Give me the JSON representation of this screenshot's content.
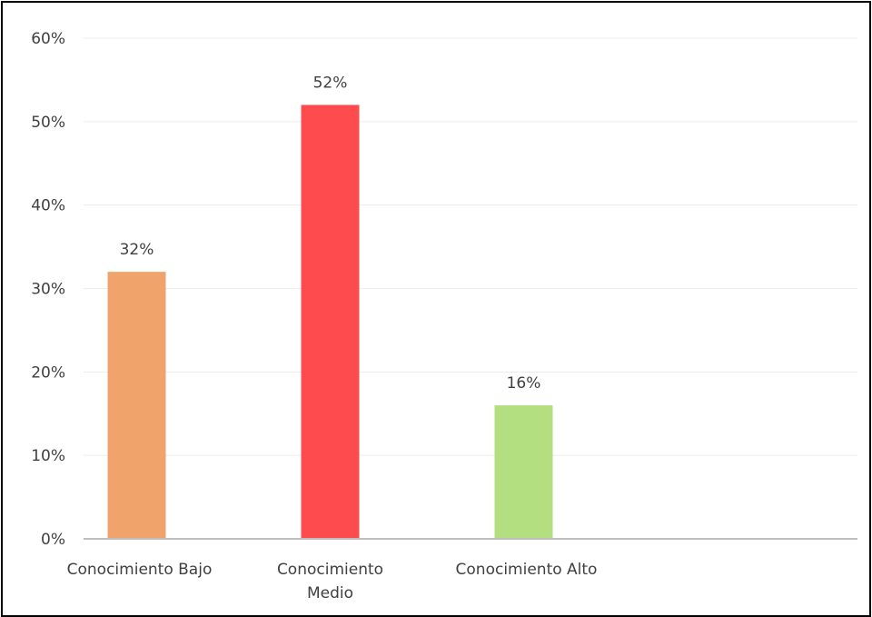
{
  "chart_data": {
    "type": "bar",
    "title": "",
    "xlabel": "",
    "ylabel": "",
    "categories": [
      [
        "Conocimiento Bajo"
      ],
      [
        "Conocimiento",
        "Medio"
      ],
      [
        "Conocimiento Alto"
      ]
    ],
    "values": [
      32,
      52,
      16
    ],
    "data_labels": [
      "32%",
      "52%",
      "16%"
    ],
    "ylim": [
      0,
      60
    ],
    "yticks": [
      0,
      10,
      20,
      30,
      40,
      50,
      60
    ],
    "ytick_labels": [
      "0%",
      "10%",
      "20%",
      "30%",
      "40%",
      "50%",
      "60%"
    ],
    "colors": [
      "#F0A46C",
      "#FE4C4E",
      "#B3DF81"
    ],
    "grid": true,
    "legend": "none"
  }
}
